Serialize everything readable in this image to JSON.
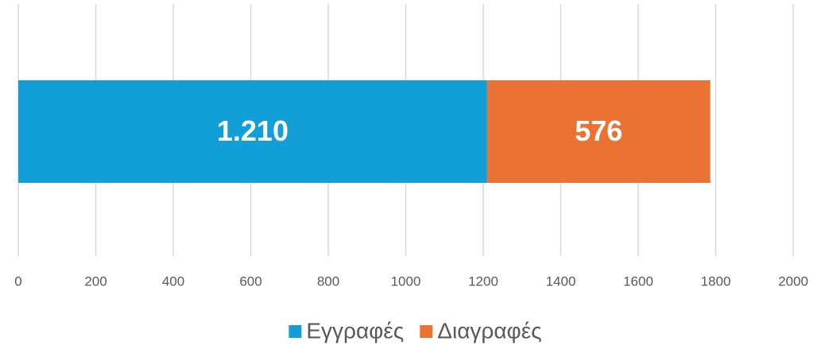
{
  "chart_data": {
    "type": "stacked-bar-horizontal",
    "categories": [
      null
    ],
    "series": [
      {
        "name": "Εγγραφές",
        "color": "#129fd8",
        "values": [
          1210
        ],
        "value_labels": [
          "1.210"
        ]
      },
      {
        "name": "Διαγραφές",
        "color": "#ea7333",
        "values": [
          576
        ]
      }
    ],
    "xlim": [
      0,
      2000
    ],
    "xticks": [
      0,
      200,
      400,
      600,
      800,
      1000,
      1200,
      1400,
      1600,
      1800,
      2000
    ],
    "grid": true,
    "legend": "bottom"
  }
}
